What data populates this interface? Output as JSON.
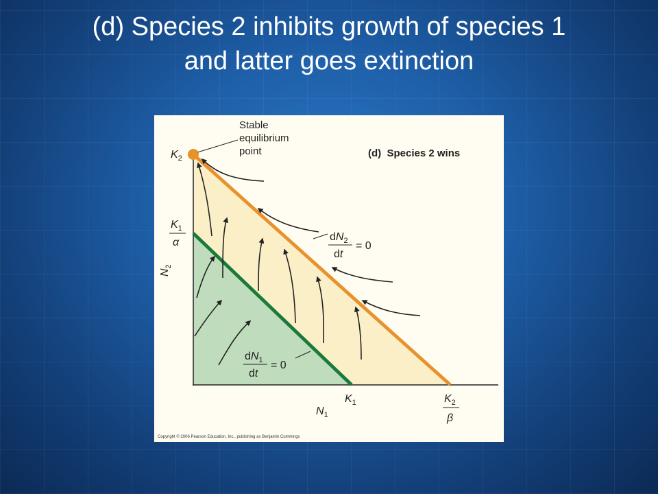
{
  "slide": {
    "title_line1": "(d) Species 2 inhibits growth of species 1",
    "title_line2": "and latter goes extinction"
  },
  "figure": {
    "panel_title": "(d)  Species 2 wins",
    "equilibrium_label": [
      "Stable",
      "equilibrium",
      "point"
    ],
    "y_axis": {
      "name": "N",
      "sub": "2"
    },
    "x_axis": {
      "name": "N",
      "sub": "1"
    },
    "k2_y": {
      "name": "K",
      "sub": "2"
    },
    "k1_alpha": {
      "name": "K",
      "sub": "1",
      "denominator": "α"
    },
    "k1_x": {
      "name": "K",
      "sub": "1"
    },
    "k2_beta": {
      "name": "K",
      "sub": "2",
      "denominator": "β"
    },
    "isocline_2": {
      "num_d": "d",
      "num_var": "N",
      "num_sub": "2",
      "den": "d",
      "den_var": "t",
      "rhs": "= 0"
    },
    "isocline_1": {
      "num_d": "d",
      "num_var": "N",
      "num_sub": "1",
      "den": "d",
      "den_var": "t",
      "rhs": "= 0"
    },
    "copyright": "Copyright © 2006 Pearson Education, Inc., publishing as Benjamin Cummings",
    "colors": {
      "species2_isocline": "#e8922e",
      "species1_isocline": "#1a7a3a",
      "region_above": "#fbefc8",
      "region_below": "#bfdcbc",
      "arrow": "#222222"
    }
  }
}
